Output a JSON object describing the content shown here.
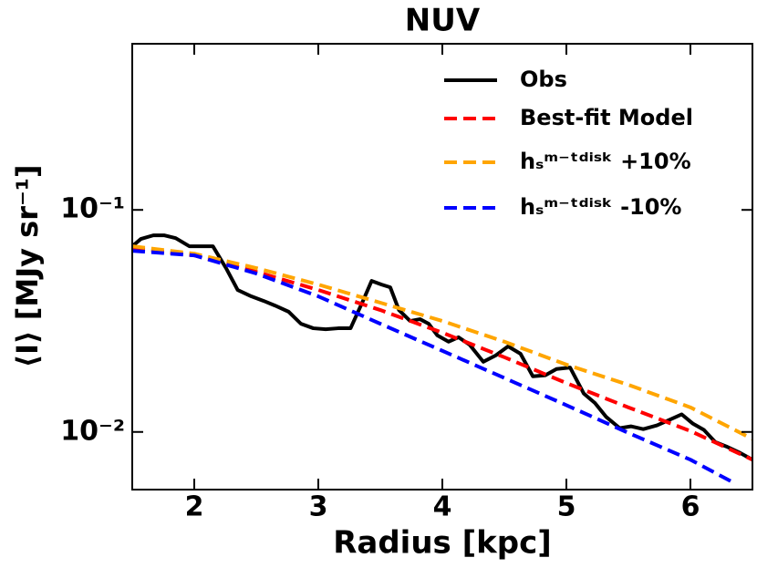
{
  "chart_data": {
    "type": "line",
    "title": "NUV",
    "xlabel": "Radius [kpc]",
    "ylabel": "⟨I⟩ [MJy sr⁻¹]",
    "xlim": [
      1.5,
      6.5
    ],
    "xticks": [
      2,
      3,
      4,
      5,
      6
    ],
    "ylim": [
      0.0055,
      0.56
    ],
    "yscale": "log",
    "yticks": [
      {
        "value": 0.1,
        "label": "10⁻¹"
      },
      {
        "value": 0.01,
        "label": "10⁻²"
      }
    ],
    "legend": "upper right",
    "series": [
      {
        "name": "Obs",
        "color": "#000000",
        "dash": false,
        "x": [
          1.5,
          1.57,
          1.67,
          1.76,
          1.85,
          1.96,
          2.05,
          2.15,
          2.26,
          2.35,
          2.46,
          2.56,
          2.65,
          2.76,
          2.86,
          2.96,
          3.06,
          3.16,
          3.26,
          3.36,
          3.43,
          3.51,
          3.58,
          3.65,
          3.74,
          3.82,
          3.89,
          3.96,
          4.05,
          4.13,
          4.22,
          4.33,
          4.43,
          4.53,
          4.63,
          4.73,
          4.83,
          4.92,
          5.03,
          5.14,
          5.23,
          5.32,
          5.43,
          5.52,
          5.62,
          5.73,
          5.84,
          5.93,
          6.02,
          6.11,
          6.2,
          6.29,
          6.39,
          6.5
        ],
        "values": [
          0.0686,
          0.074,
          0.0768,
          0.0768,
          0.0746,
          0.0686,
          0.0686,
          0.0686,
          0.0542,
          0.0436,
          0.0408,
          0.0389,
          0.0371,
          0.0348,
          0.0307,
          0.0293,
          0.029,
          0.0293,
          0.0293,
          0.0389,
          0.0479,
          0.0461,
          0.0448,
          0.0354,
          0.0316,
          0.0322,
          0.0307,
          0.0272,
          0.0255,
          0.0267,
          0.0247,
          0.0207,
          0.0221,
          0.0243,
          0.0225,
          0.0178,
          0.018,
          0.0192,
          0.0195,
          0.0149,
          0.0135,
          0.0117,
          0.0104,
          0.0106,
          0.0103,
          0.0107,
          0.0114,
          0.012,
          0.0109,
          0.0102,
          0.009,
          0.0086,
          0.0081,
          0.0075
        ]
      },
      {
        "name": "Best-fit Model",
        "color": "#ff0000",
        "dash": true,
        "x": [
          1.5,
          2,
          2.5,
          3,
          3.5,
          4,
          4.5,
          5,
          5.5,
          6,
          6.5
        ],
        "values": [
          0.0673,
          0.0624,
          0.0526,
          0.0436,
          0.0354,
          0.028,
          0.0217,
          0.0166,
          0.0129,
          0.0101,
          0.0075
        ]
      },
      {
        "name": "hₛᵐ⁻ᵗᵈⁱˢᵏ +10%",
        "color": "#ffa500",
        "dash": true,
        "x": [
          1.5,
          2,
          2.5,
          3,
          3.5,
          4,
          4.5,
          5,
          5.5,
          6,
          6.5
        ],
        "values": [
          0.0686,
          0.0635,
          0.0547,
          0.0461,
          0.0382,
          0.0316,
          0.0255,
          0.0201,
          0.0163,
          0.0129,
          0.0093
        ]
      },
      {
        "name": "hₛᵐ⁻ᵗᵈⁱˢᵏ -10%",
        "color": "#0000ff",
        "dash": true,
        "x": [
          1.5,
          2,
          2.5,
          3,
          3.5,
          4,
          4.5,
          5,
          5.5,
          6,
          6.35
        ],
        "values": [
          0.0654,
          0.0624,
          0.0517,
          0.0408,
          0.0307,
          0.0232,
          0.0175,
          0.0132,
          0.0099,
          0.0075,
          0.0059
        ]
      }
    ]
  }
}
